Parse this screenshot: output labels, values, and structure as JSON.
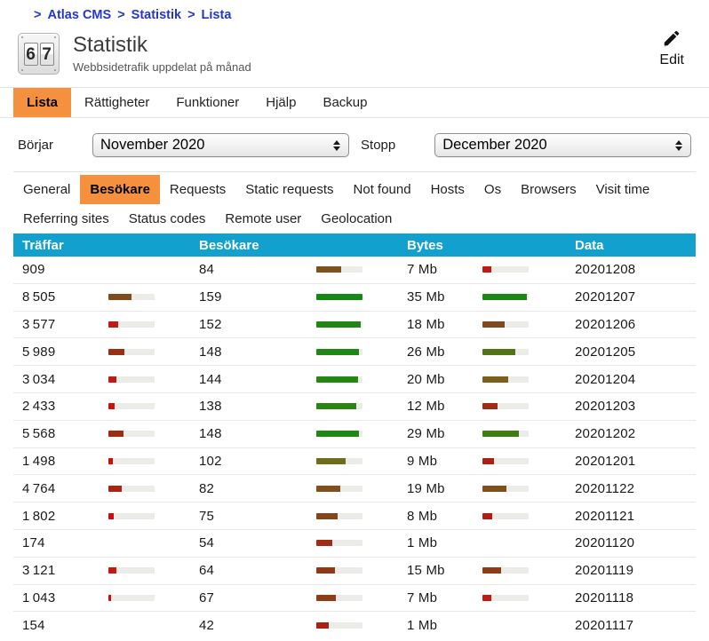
{
  "breadcrumb": {
    "separator": ">",
    "items": [
      {
        "label": "Atlas CMS"
      },
      {
        "label": "Statistik"
      },
      {
        "label": "Lista"
      }
    ]
  },
  "header": {
    "icon_digits": [
      "6",
      "7"
    ],
    "title": "Statistik",
    "subtitle": "Webbsidetrafik uppdelat på månad",
    "edit_label": "Edit"
  },
  "tabs": {
    "items": [
      {
        "label": "Lista",
        "active": true
      },
      {
        "label": "Rättigheter",
        "active": false
      },
      {
        "label": "Funktioner",
        "active": false
      },
      {
        "label": "Hjälp",
        "active": false
      },
      {
        "label": "Backup",
        "active": false
      }
    ]
  },
  "filters": {
    "start_label": "Börjar",
    "start_value": "November 2020",
    "stop_label": "Stopp",
    "stop_value": "December 2020"
  },
  "subtabs": {
    "row1": [
      {
        "label": "General",
        "active": false
      },
      {
        "label": "Besökare",
        "active": true
      },
      {
        "label": "Requests",
        "active": false
      },
      {
        "label": "Static requests",
        "active": false
      },
      {
        "label": "Not found",
        "active": false
      },
      {
        "label": "Hosts",
        "active": false
      },
      {
        "label": "Os",
        "active": false
      },
      {
        "label": "Browsers",
        "active": false
      },
      {
        "label": "Visit time",
        "active": false
      }
    ],
    "row2": [
      {
        "label": "Referring sites",
        "active": false
      },
      {
        "label": "Status codes",
        "active": false
      },
      {
        "label": "Remote user",
        "active": false
      },
      {
        "label": "Geolocation",
        "active": false
      }
    ]
  },
  "table": {
    "columns": [
      "Träffar",
      "Besökare",
      "Bytes",
      "Data"
    ],
    "rows": [
      {
        "traffar": "909",
        "traffar_bar": null,
        "besokare": "84",
        "besokare_bar": {
          "pct": 53,
          "color": "#7e511c"
        },
        "bytes": "7 Mb",
        "bytes_bar": {
          "pct": 19,
          "color": "#c41812"
        },
        "date": "20201208"
      },
      {
        "traffar": "8 505",
        "traffar_bar": {
          "pct": 50,
          "color": "#814c1c"
        },
        "besokare": "159",
        "besokare_bar": {
          "pct": 100,
          "color": "#148714"
        },
        "bytes": "35 Mb",
        "bytes_bar": {
          "pct": 96,
          "color": "#1d8714"
        },
        "date": "20201207"
      },
      {
        "traffar": "3 577",
        "traffar_bar": {
          "pct": 21,
          "color": "#c01b10"
        },
        "besokare": "152",
        "besokare_bar": {
          "pct": 96,
          "color": "#1d8714"
        },
        "bytes": "18 Mb",
        "bytes_bar": {
          "pct": 49,
          "color": "#81491b"
        },
        "date": "20201206"
      },
      {
        "traffar": "5 989",
        "traffar_bar": {
          "pct": 35,
          "color": "#9b2f15"
        },
        "besokare": "148",
        "besokare_bar": {
          "pct": 93,
          "color": "#1f8713"
        },
        "bytes": "26 Mb",
        "bytes_bar": {
          "pct": 71,
          "color": "#527417"
        },
        "date": "20201205"
      },
      {
        "traffar": "3 034",
        "traffar_bar": {
          "pct": 18,
          "color": "#c41812"
        },
        "besokare": "144",
        "besokare_bar": {
          "pct": 91,
          "color": "#238712"
        },
        "bytes": "20 Mb",
        "bytes_bar": {
          "pct": 55,
          "color": "#7c5f1a"
        },
        "date": "20201204"
      },
      {
        "traffar": "2 433",
        "traffar_bar": {
          "pct": 14,
          "color": "#c9140e"
        },
        "besokare": "138",
        "besokare_bar": {
          "pct": 87,
          "color": "#2d8511"
        },
        "bytes": "12 Mb",
        "bytes_bar": {
          "pct": 33,
          "color": "#9f2b14"
        },
        "date": "20201203"
      },
      {
        "traffar": "5 568",
        "traffar_bar": {
          "pct": 33,
          "color": "#9f2b14"
        },
        "besokare": "148",
        "besokare_bar": {
          "pct": 93,
          "color": "#1f8713"
        },
        "bytes": "29 Mb",
        "bytes_bar": {
          "pct": 79,
          "color": "#3f7d12"
        },
        "date": "20201202"
      },
      {
        "traffar": "1 498",
        "traffar_bar": {
          "pct": 9,
          "color": "#d10d0c"
        },
        "besokare": "102",
        "besokare_bar": {
          "pct": 64,
          "color": "#6d6d1a"
        },
        "bytes": "9 Mb",
        "bytes_bar": {
          "pct": 25,
          "color": "#ad2012"
        },
        "date": "20201201"
      },
      {
        "traffar": "4 764",
        "traffar_bar": {
          "pct": 28,
          "color": "#a82413"
        },
        "besokare": "82",
        "besokare_bar": {
          "pct": 52,
          "color": "#7f4f1c"
        },
        "bytes": "19 Mb",
        "bytes_bar": {
          "pct": 52,
          "color": "#7f4f1c"
        },
        "date": "20201122"
      },
      {
        "traffar": "1 802",
        "traffar_bar": {
          "pct": 11,
          "color": "#cc0f0d"
        },
        "besokare": "75",
        "besokare_bar": {
          "pct": 47,
          "color": "#84451a"
        },
        "bytes": "8 Mb",
        "bytes_bar": {
          "pct": 22,
          "color": "#b31c11"
        },
        "date": "20201121"
      },
      {
        "traffar": "174",
        "traffar_bar": null,
        "besokare": "54",
        "besokare_bar": {
          "pct": 34,
          "color": "#9d2d14"
        },
        "bytes": "1 Mb",
        "bytes_bar": null,
        "date": "20201120"
      },
      {
        "traffar": "3 121",
        "traffar_bar": {
          "pct": 18,
          "color": "#c41812"
        },
        "besokare": "64",
        "besokare_bar": {
          "pct": 40,
          "color": "#903917"
        },
        "bytes": "15 Mb",
        "bytes_bar": {
          "pct": 41,
          "color": "#8e3b18"
        },
        "date": "20201119"
      },
      {
        "traffar": "1 043",
        "traffar_bar": {
          "pct": 6,
          "color": "#d80a0b"
        },
        "besokare": "67",
        "besokare_bar": {
          "pct": 42,
          "color": "#8d3d18"
        },
        "bytes": "7 Mb",
        "bytes_bar": {
          "pct": 19,
          "color": "#c41812"
        },
        "date": "20201118"
      },
      {
        "traffar": "154",
        "traffar_bar": null,
        "besokare": "42",
        "besokare_bar": {
          "pct": 26,
          "color": "#ab2112"
        },
        "bytes": "1 Mb",
        "bytes_bar": null,
        "date": "20201117"
      }
    ]
  },
  "colors": {
    "accent_orange": "#f5913e",
    "table_header_blue": "#12a0ce",
    "breadcrumb_blue": "#2336d1",
    "bar_track_gray": "#ebebe8"
  }
}
